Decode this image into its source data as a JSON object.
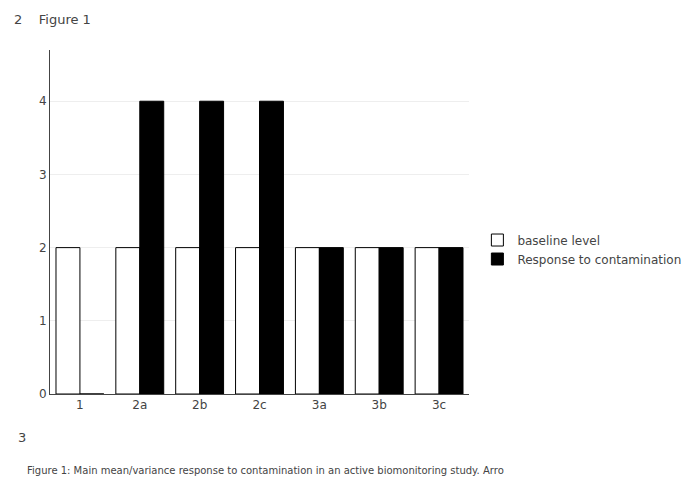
{
  "chart_data": {
    "type": "bar",
    "title": "2    Figure 1",
    "categories": [
      "1",
      "2a",
      "2b",
      "2c",
      "3a",
      "3b",
      "3c"
    ],
    "series": [
      {
        "name": "baseline level",
        "color": "#ffffff",
        "values": [
          2,
          2,
          2,
          2,
          2,
          2,
          2
        ]
      },
      {
        "name": "Response to contamination",
        "color": "#000000",
        "values": [
          0,
          4,
          4,
          4,
          2,
          2,
          2
        ]
      }
    ],
    "ylim": [
      0,
      4.7
    ],
    "yticks": [
      0,
      1,
      2,
      3,
      4
    ],
    "grid": true,
    "legend": "right",
    "annotations": [
      "3"
    ],
    "caption": "Figure 1: Main mean/variance response to contamination in an active biomonitoring study. Arro"
  }
}
